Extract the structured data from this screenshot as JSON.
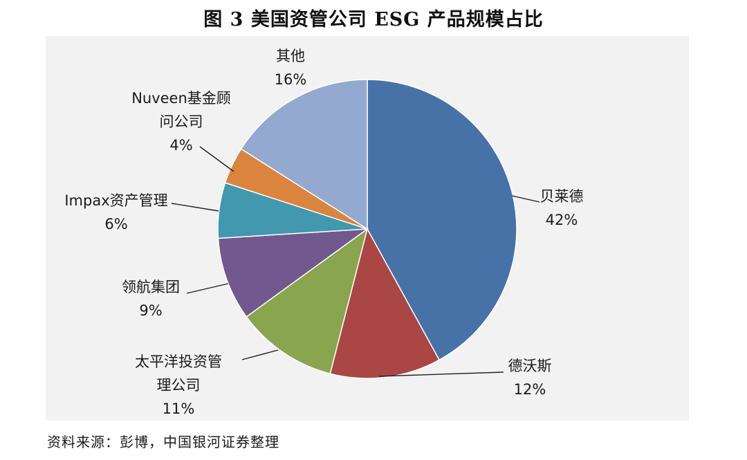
{
  "title": "图 3   美国资管公司 ESG 产品规模占比",
  "source": "资料来源：彭博，中国银河证券整理",
  "colors": {
    "panel_background": "#f2f2f2",
    "leader_line": "#1f1f1f"
  },
  "chart_data": {
    "type": "pie",
    "title": "图 3   美国资管公司 ESG 产品规模占比",
    "start_angle": "12 o'clock",
    "direction": "clockwise",
    "legend": "none",
    "slices": [
      {
        "label_lines": [
          "贝莱德"
        ],
        "label": "贝莱德",
        "value": 42,
        "display": "42%",
        "color": "#4672a8"
      },
      {
        "label_lines": [
          "德沃斯"
        ],
        "label": "德沃斯",
        "value": 12,
        "display": "12%",
        "color": "#aa4644"
      },
      {
        "label_lines": [
          "太平洋投资管",
          "理公司"
        ],
        "label": "太平洋投资管理公司",
        "value": 11,
        "display": "11%",
        "color": "#89a54e"
      },
      {
        "label_lines": [
          "领航集团"
        ],
        "label": "领航集团",
        "value": 9,
        "display": "9%",
        "color": "#71588f"
      },
      {
        "label_lines": [
          "Impax资产管理"
        ],
        "label": "Impax资产管理",
        "value": 6,
        "display": "6%",
        "color": "#4198af"
      },
      {
        "label_lines": [
          "Nuveen基金顾",
          "问公司"
        ],
        "label": "Nuveen基金顾问公司",
        "value": 4,
        "display": "4%",
        "color": "#db843d"
      },
      {
        "label_lines": [
          "其他"
        ],
        "label": "其他",
        "value": 16,
        "display": "16%",
        "color": "#93a9cf"
      }
    ]
  }
}
